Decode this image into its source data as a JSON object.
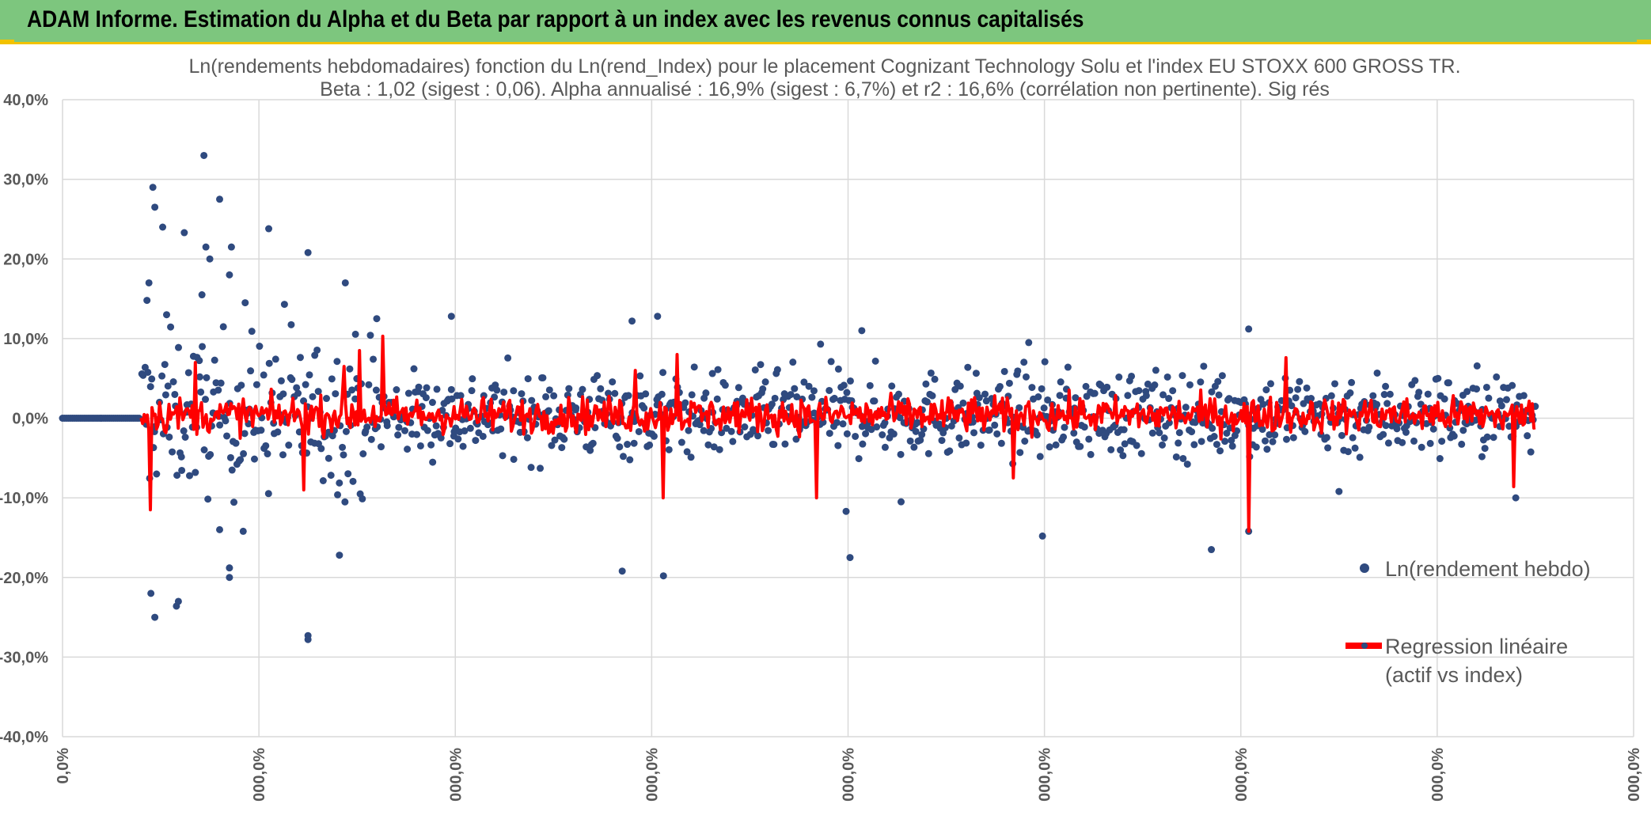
{
  "header": {
    "title": "ADAM Informe. Estimation du Alpha et du Beta par rapport à un index avec les revenus connus capitalisés",
    "background": "#7dc67e",
    "accent": "#f2c200"
  },
  "chart_data": {
    "type": "scatter",
    "title": "Ln(rendements hebdomadaires) fonction du Ln(rend_Index) pour le placement Cognizant Technology Solu et l'index EU STOXX 600 GROSS TR.",
    "subtitle": "Beta : 1,02 (sigest : 0,06). Alpha annualisé : 16,9% (sigest : 6,7%) et r2 : 16,6% (corrélation non pertinente). Sig rés",
    "stats": {
      "beta": 1.02,
      "beta_sigest": 0.06,
      "alpha_annualized_pct": 16.9,
      "alpha_sigest_pct": 6.7,
      "r2_pct": 16.6
    },
    "ylabel": "",
    "xlabel": "",
    "ylim": [
      -40,
      40
    ],
    "xlim": [
      0,
      8
    ],
    "y_ticks": [
      "40,0%",
      "30,0%",
      "20,0%",
      "10,0%",
      "0,0%",
      "-10,0%",
      "-20,0%",
      "-30,0%",
      "-40,0%"
    ],
    "y_tick_values": [
      40,
      30,
      20,
      10,
      0,
      -10,
      -20,
      -30,
      -40
    ],
    "x_ticks": [
      "0,0%",
      "000,0%",
      "000,0%",
      "000,0%",
      "000,0%",
      "000,0%",
      "000,0%",
      "000,0%",
      "000,0%"
    ],
    "x_tick_values": [
      0,
      1,
      2,
      3,
      4,
      5,
      6,
      7,
      8
    ],
    "grid": true,
    "legend_position": "right",
    "series": [
      {
        "name": "Ln(rendement hebdo)",
        "kind": "points",
        "color": "#2f4a7f",
        "flat_segment": {
          "x_start": 0.0,
          "x_end": 0.4,
          "y": 0
        },
        "x_range": [
          0.4,
          7.5
        ],
        "typical_spread_pct": 4.5,
        "points": [
          {
            "x": 0.46,
            "y": 29.0
          },
          {
            "x": 0.47,
            "y": 26.5
          },
          {
            "x": 0.51,
            "y": 24.0
          },
          {
            "x": 0.62,
            "y": 23.3
          },
          {
            "x": 0.72,
            "y": 33.0
          },
          {
            "x": 0.73,
            "y": 21.5
          },
          {
            "x": 0.75,
            "y": 20.0
          },
          {
            "x": 0.8,
            "y": 27.5
          },
          {
            "x": 0.86,
            "y": 21.5
          },
          {
            "x": 1.05,
            "y": 23.8
          },
          {
            "x": 1.25,
            "y": 20.8
          },
          {
            "x": 1.44,
            "y": 17.0
          },
          {
            "x": 0.44,
            "y": 17.0
          },
          {
            "x": 0.43,
            "y": 14.8
          },
          {
            "x": 0.53,
            "y": 13.0
          },
          {
            "x": 0.71,
            "y": 15.5
          },
          {
            "x": 0.85,
            "y": 18.0
          },
          {
            "x": 0.93,
            "y": 14.5
          },
          {
            "x": 1.13,
            "y": 14.3
          },
          {
            "x": 1.6,
            "y": 12.5
          },
          {
            "x": 1.98,
            "y": 12.8
          },
          {
            "x": 3.03,
            "y": 12.8
          },
          {
            "x": 2.9,
            "y": 12.2
          },
          {
            "x": 4.07,
            "y": 11.0
          },
          {
            "x": 6.04,
            "y": 11.2
          },
          {
            "x": 3.86,
            "y": 9.3
          },
          {
            "x": 4.92,
            "y": 9.5
          },
          {
            "x": 0.45,
            "y": -22.0
          },
          {
            "x": 0.47,
            "y": -25.0
          },
          {
            "x": 0.58,
            "y": -23.6
          },
          {
            "x": 0.59,
            "y": -23.0
          },
          {
            "x": 0.85,
            "y": -18.8
          },
          {
            "x": 0.85,
            "y": -20.0
          },
          {
            "x": 0.8,
            "y": -14.0
          },
          {
            "x": 0.92,
            "y": -14.2
          },
          {
            "x": 1.25,
            "y": -27.3
          },
          {
            "x": 1.25,
            "y": -27.8
          },
          {
            "x": 1.41,
            "y": -17.2
          },
          {
            "x": 2.85,
            "y": -19.2
          },
          {
            "x": 3.06,
            "y": -19.8
          },
          {
            "x": 4.01,
            "y": -17.5
          },
          {
            "x": 4.99,
            "y": -14.8
          },
          {
            "x": 6.04,
            "y": -14.2
          },
          {
            "x": 5.85,
            "y": -16.5
          },
          {
            "x": 4.27,
            "y": -10.5
          },
          {
            "x": 3.99,
            "y": -11.7
          },
          {
            "x": 7.4,
            "y": -10.0
          },
          {
            "x": 6.5,
            "y": -9.2
          }
        ]
      },
      {
        "name": "Regression linéaire (actif vs index)",
        "kind": "line",
        "color": "#ff0000",
        "x_range": [
          0.4,
          7.5
        ],
        "typical_spread_pct": 2.5,
        "spikes": [
          {
            "x": 0.45,
            "y": -11.5
          },
          {
            "x": 0.68,
            "y": 7.0
          },
          {
            "x": 1.23,
            "y": -9.0
          },
          {
            "x": 1.51,
            "y": 8.5
          },
          {
            "x": 1.63,
            "y": 10.3
          },
          {
            "x": 3.06,
            "y": -10.0
          },
          {
            "x": 3.13,
            "y": 8.0
          },
          {
            "x": 3.84,
            "y": -10.0
          },
          {
            "x": 6.04,
            "y": -14.2
          },
          {
            "x": 6.23,
            "y": 7.6
          },
          {
            "x": 7.39,
            "y": -8.6
          },
          {
            "x": 4.84,
            "y": -7.5
          },
          {
            "x": 1.43,
            "y": 6.5
          },
          {
            "x": 2.92,
            "y": 6.0
          }
        ]
      }
    ],
    "legend": [
      "Ln(rendement hebdo)",
      "Regression linéaire",
      "(actif vs index)"
    ]
  }
}
